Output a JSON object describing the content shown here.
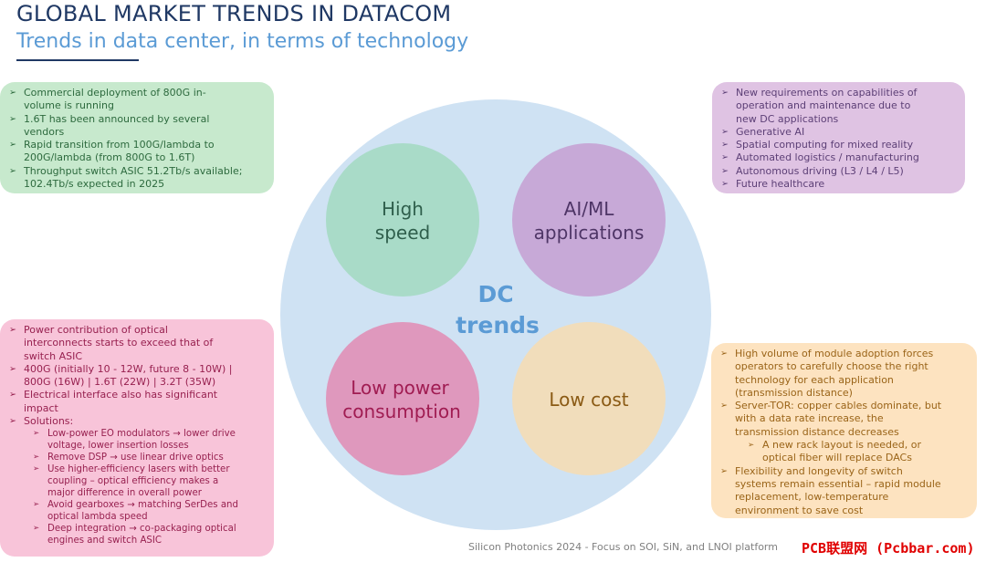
{
  "header": {
    "title": "GLOBAL MARKET TRENDS IN DATACOM",
    "subtitle": "Trends in data center, in terms of technology"
  },
  "colors": {
    "title": "#1f3864",
    "subtitle": "#5b9bd5",
    "big_circle": "#cfe2f3",
    "high_speed": "#a9dbc8",
    "ai_ml": "#c7a9d7",
    "low_power": "#df98bd",
    "low_cost": "#f1ddbb"
  },
  "diagram": {
    "center_label_line1": "DC",
    "center_label_line2": "trends",
    "high_speed": {
      "line1": "High",
      "line2": "speed"
    },
    "ai_ml": {
      "line1": "AI/ML",
      "line2": "applications"
    },
    "low_power": {
      "line1": "Low power",
      "line2": "consumption"
    },
    "low_cost": {
      "line1": "Low cost"
    }
  },
  "boxes": {
    "high_speed": [
      "Commercial deployment of 800G in-\nvolume is running",
      "1.6T has been announced by several\nvendors",
      "Rapid transition from 100G/lambda to\n200G/lambda (from 800G to 1.6T)",
      "Throughput switch ASIC 51.2Tb/s available;\n102.4Tb/s expected in 2025"
    ],
    "ai_ml": [
      "New requirements on capabilities of\noperation and maintenance due to\nnew DC applications",
      "Generative AI",
      "Spatial computing for mixed reality",
      "Automated logistics / manufacturing",
      "Autonomous driving (L3 / L4 / L5)",
      "Future healthcare"
    ],
    "low_power": [
      "Power contribution of optical\ninterconnects starts to exceed that of\nswitch ASIC",
      "400G (initially 10 - 12W, future 8 - 10W) |\n800G (16W) | 1.6T (22W) | 3.2T (35W)",
      "Electrical interface also has significant\nimpact",
      "Solutions:"
    ],
    "low_power_solutions": [
      "Low-power EO modulators → lower drive\nvoltage, lower insertion losses",
      "Remove DSP → use linear drive optics",
      "Use higher-efficiency lasers with better\ncoupling – optical efficiency makes a\nmajor difference in overall power",
      "Avoid gearboxes → matching SerDes and\noptical lambda speed",
      "Deep integration → co-packaging optical\nengines and switch ASIC"
    ],
    "low_cost": [
      "High volume of module adoption forces\noperators to carefully choose the right\ntechnology for each application\n(transmission distance)",
      "Server-TOR: copper cables dominate, but\nwith a data rate increase, the\ntransmission distance decreases"
    ],
    "low_cost_sub": [
      "A new rack layout is needed, or\noptical fiber will replace DACs"
    ],
    "low_cost_more": [
      "Flexibility and longevity of switch\nsystems remain essential – rapid module\nreplacement, low-temperature\nenvironment to save cost"
    ]
  },
  "footer": {
    "text": "Silicon Photonics 2024 - Focus on SOI, SiN, and LNOI platform",
    "watermark": "PCB联盟网 (Pcbbar.com)"
  }
}
